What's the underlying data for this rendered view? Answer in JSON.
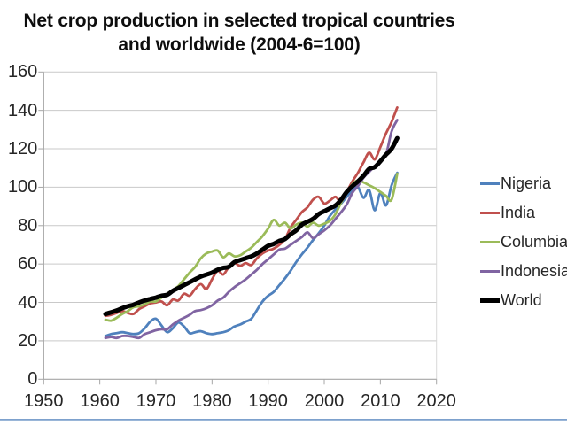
{
  "title": {
    "line1": "Net crop production in selected tropical countries",
    "line2": "and worldwide (2004-6=100)"
  },
  "colors": {
    "grid": "#C9C9C9",
    "axis": "#A6A6A6",
    "plot_border": "#D8D8D8",
    "accent_rule": "#6E96C8",
    "title_text": "#0D0D0D",
    "label_text": "#262626"
  },
  "chart_data": {
    "type": "line",
    "title": "Net crop production in selected tropical countries and worldwide (2004-6=100)",
    "xlabel": "",
    "ylabel": "",
    "xlim": [
      1950,
      2020
    ],
    "ylim": [
      0,
      160
    ],
    "x_ticks": [
      1950,
      1960,
      1970,
      1980,
      1990,
      2000,
      2010,
      2020
    ],
    "y_ticks": [
      0,
      20,
      40,
      60,
      80,
      100,
      120,
      140,
      160
    ],
    "grid": "horizontal",
    "legend_position": "right",
    "x": [
      1961,
      1962,
      1963,
      1964,
      1965,
      1966,
      1967,
      1968,
      1969,
      1970,
      1971,
      1972,
      1973,
      1974,
      1975,
      1976,
      1977,
      1978,
      1979,
      1980,
      1981,
      1982,
      1983,
      1984,
      1985,
      1986,
      1987,
      1988,
      1989,
      1990,
      1991,
      1992,
      1993,
      1994,
      1995,
      1996,
      1997,
      1998,
      1999,
      2000,
      2001,
      2002,
      2003,
      2004,
      2005,
      2006,
      2007,
      2008,
      2009,
      2010,
      2011,
      2012,
      2013
    ],
    "series": [
      {
        "name": "Nigeria",
        "color": "#4F81BD",
        "stroke_width": 2.8,
        "values": [
          22.5,
          23.5,
          24,
          24.5,
          24,
          23.5,
          24,
          26.5,
          30,
          31.5,
          28,
          24.5,
          26.5,
          29.5,
          27.5,
          24,
          24.5,
          25,
          24,
          23.5,
          24,
          24.5,
          25.5,
          27.5,
          28.5,
          30,
          31.5,
          36,
          40.5,
          43.5,
          45.5,
          49,
          52.5,
          56.5,
          61,
          65,
          68.5,
          72.5,
          76,
          80,
          85,
          88.5,
          91.5,
          95,
          98.5,
          100,
          94.5,
          98.5,
          88,
          97,
          90.5,
          101,
          107.5
        ]
      },
      {
        "name": "India",
        "color": "#C0504D",
        "stroke_width": 2.8,
        "values": [
          33,
          33.5,
          34.5,
          35.5,
          34.5,
          34,
          36.5,
          38,
          39.5,
          40,
          40.5,
          38.5,
          41.5,
          41,
          44.5,
          43.5,
          47,
          49.5,
          47,
          52,
          56.5,
          54.5,
          58.5,
          60.5,
          59,
          60.5,
          59.5,
          63,
          65.5,
          67,
          68,
          70,
          73,
          79,
          83,
          87,
          89.5,
          93.5,
          95,
          91.5,
          93,
          95,
          92.5,
          97.5,
          103,
          107.5,
          113,
          118,
          114.5,
          121,
          128,
          134,
          141.5
        ]
      },
      {
        "name": "Columbia",
        "color": "#9BBB59",
        "stroke_width": 2.8,
        "values": [
          31,
          30.5,
          32,
          34,
          35.5,
          37.5,
          38,
          39,
          40.5,
          40.5,
          42.5,
          44.5,
          46.5,
          48.5,
          52,
          55.5,
          58.5,
          63,
          65.5,
          66.5,
          67,
          63.5,
          65.5,
          64,
          64.5,
          66.5,
          68.5,
          71.5,
          74.5,
          78.5,
          83,
          80,
          81.5,
          78.5,
          80.5,
          81.5,
          79.5,
          81.5,
          80,
          81,
          82.5,
          86,
          92,
          97,
          101.5,
          103.5,
          102.5,
          101,
          99.5,
          97.5,
          95.5,
          93.5,
          107
        ]
      },
      {
        "name": "Indonesia",
        "color": "#8064A2",
        "stroke_width": 2.8,
        "values": [
          21.5,
          22,
          21.5,
          22.5,
          22.5,
          22,
          21.5,
          23.5,
          24.5,
          25.5,
          26,
          26,
          28.5,
          30.5,
          32,
          33.5,
          35.5,
          36,
          37,
          38.5,
          41,
          42.5,
          45.5,
          48,
          50,
          52,
          54.5,
          57,
          60,
          62.5,
          65,
          67.5,
          68,
          70,
          72,
          74,
          76.5,
          73.5,
          75.5,
          77.5,
          80,
          83.5,
          87,
          91,
          97,
          100.5,
          105,
          108,
          111,
          113.5,
          117,
          129,
          135
        ]
      },
      {
        "name": "World",
        "color": "#000000",
        "stroke_width": 5,
        "values": [
          34,
          34.8,
          35.8,
          37,
          38,
          38.8,
          40,
          41,
          41.8,
          42.5,
          43.5,
          44,
          46,
          47.5,
          49,
          50.5,
          52,
          53.5,
          54.5,
          55.5,
          57,
          58,
          58.5,
          61,
          62,
          63,
          64,
          65.5,
          67.5,
          69.5,
          70.5,
          72,
          73,
          75.5,
          77.5,
          80.5,
          82,
          83.5,
          86,
          87.5,
          89,
          90.5,
          93.5,
          97.5,
          100.5,
          103,
          106,
          109.5,
          110.5,
          113.5,
          117,
          120,
          125.5
        ]
      }
    ]
  }
}
